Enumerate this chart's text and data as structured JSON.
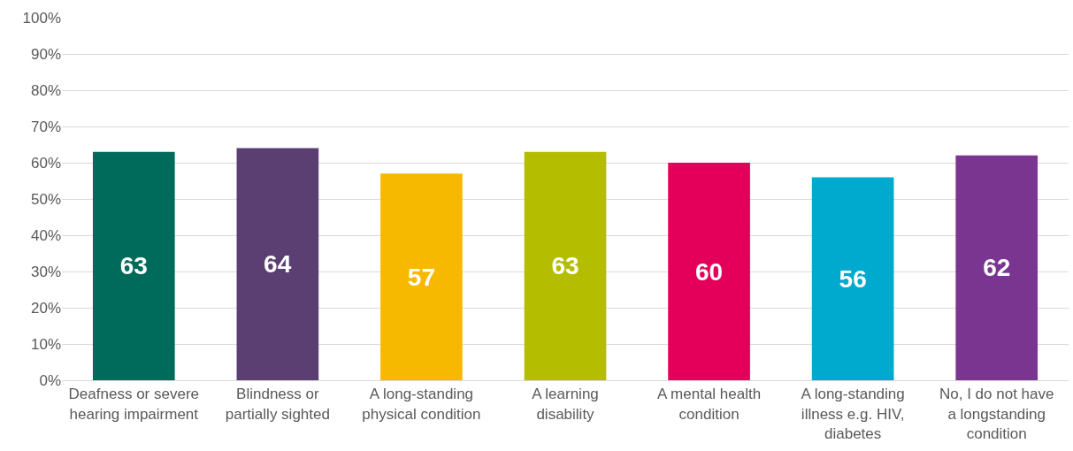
{
  "chart_data": {
    "type": "bar",
    "categories": [
      "Deafness or severe hearing impairment",
      "Blindness or partially sighted",
      "A long-standing physical condition",
      "A learning disability",
      "A mental health condition",
      "A long-standing illness e.g. HIV, diabetes",
      "No, I do not have a longstanding condition"
    ],
    "values": [
      63,
      64,
      57,
      63,
      60,
      56,
      62
    ],
    "colors": [
      "#006b5b",
      "#5b3f73",
      "#f7b800",
      "#b5bd00",
      "#e4005a",
      "#00a9ce",
      "#7a3590"
    ],
    "ylim": [
      0,
      100
    ],
    "yticks": [
      {
        "value": 0,
        "label": "0%"
      },
      {
        "value": 10,
        "label": "10%"
      },
      {
        "value": 20,
        "label": "20%"
      },
      {
        "value": 30,
        "label": "30%"
      },
      {
        "value": 40,
        "label": "40%"
      },
      {
        "value": 50,
        "label": "50%"
      },
      {
        "value": 60,
        "label": "60%"
      },
      {
        "value": 70,
        "label": "70%"
      },
      {
        "value": 80,
        "label": "80%"
      },
      {
        "value": 90,
        "label": "90%"
      },
      {
        "value": 100,
        "label": "100%"
      }
    ],
    "grid": "y",
    "data_labels": true
  }
}
